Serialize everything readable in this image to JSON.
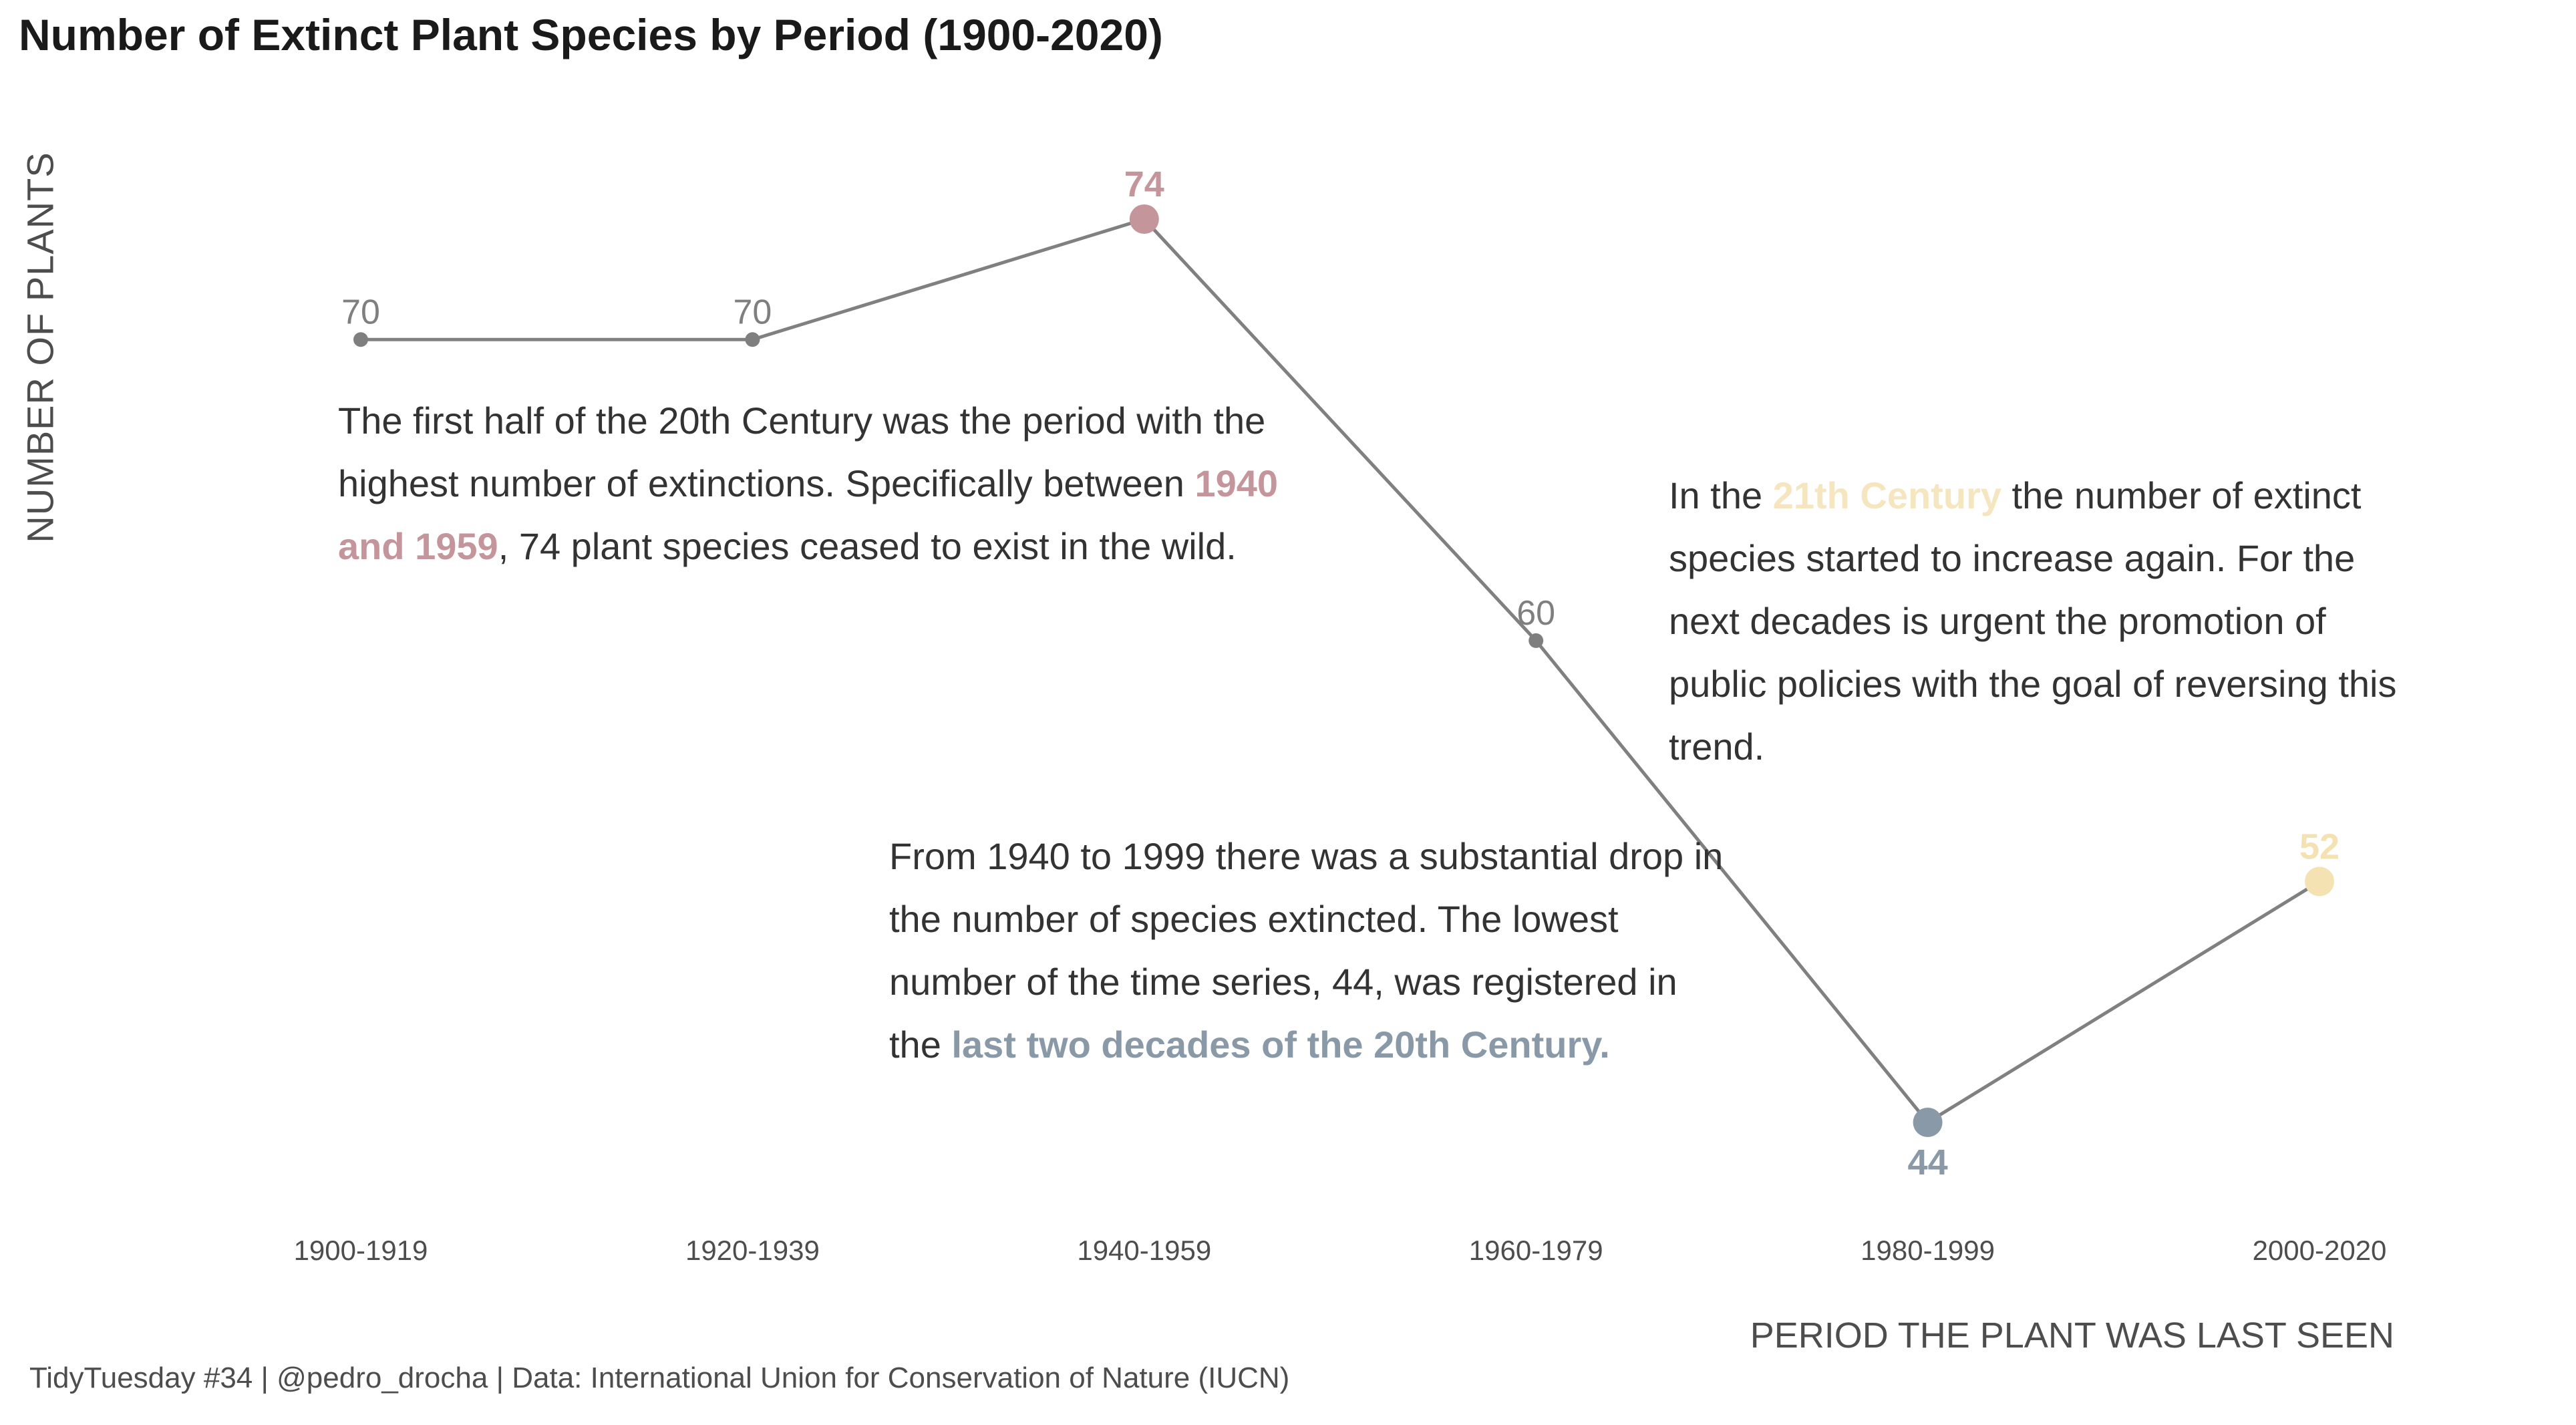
{
  "title": "Number of Extinct Plant Species by Period (1900-2020)",
  "caption": "TidyTuesday #34 | @pedro_drocha | Data: International Union for Conservation of Nature (IUCN)",
  "colors": {
    "line": "#808080",
    "default_point": "#7f7f7f",
    "max_point": "#c4969c",
    "min_point": "#8a99a8",
    "last_point": "#f5e2b3",
    "text": "#333333"
  },
  "chart_data": {
    "type": "line",
    "title": "Number of Extinct Plant Species by Period (1900-2020)",
    "xlabel": "PERIOD THE PLANT WAS LAST SEEN",
    "ylabel": "NUMBER OF PLANTS",
    "categories": [
      "1900-1919",
      "1920-1939",
      "1940-1959",
      "1960-1979",
      "1980-1999",
      "2000-2020"
    ],
    "series": [
      {
        "values": [
          70,
          70,
          74,
          60,
          44,
          52
        ]
      }
    ],
    "point_colors": [
      "#7f7f7f",
      "#7f7f7f",
      "#c4969c",
      "#7f7f7f",
      "#8a99a8",
      "#f5e2b3"
    ],
    "label_colors": [
      "#7f7f7f",
      "#7f7f7f",
      "#c4969c",
      "#7f7f7f",
      "#8a99a8",
      "#f5e2b3"
    ],
    "highlight_points": [
      2,
      4,
      5
    ],
    "ylim": [
      40,
      76
    ],
    "grid": false
  },
  "annotations": {
    "first": {
      "part1": "The first half of the 20th Century was the period with the highest number of extinctions. Specifically between ",
      "highlight": "1940 and 1959",
      "part2": ", 74 plant species ceased to exist in the wild."
    },
    "second": {
      "part1": "In the ",
      "highlight": "21th Century",
      "part2": " the number of extinct species started to increase again. For the next decades is urgent the promotion of public policies with the goal of reversing this trend."
    },
    "third": {
      "part1": "From 1940 to 1999 there was a substantial drop in the number of species extincted. The lowest number of the time series, 44, was registered in the ",
      "highlight": "last two decades of the 20th Century."
    }
  }
}
